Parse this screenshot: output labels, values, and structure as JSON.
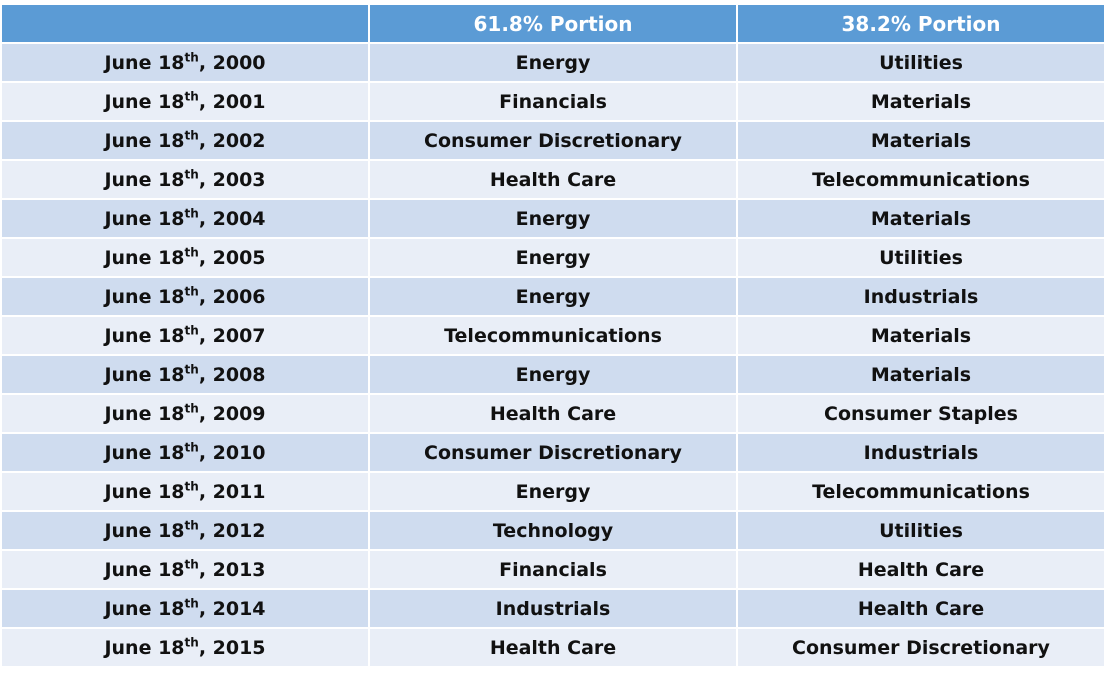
{
  "colors": {
    "header_bg": "#5b9bd5",
    "row_dark": "#cfdcef",
    "row_light": "#e9eef7",
    "text": "#111111",
    "header_text": "#ffffff"
  },
  "table": {
    "headers": [
      "",
      "61.8% Portion",
      "38.2% Portion"
    ],
    "rows": [
      {
        "date": "June 18",
        "suffix": "th",
        "year": ", 2000",
        "portion_618": "Energy",
        "portion_382": "Utilities"
      },
      {
        "date": "June 18",
        "suffix": "th",
        "year": ", 2001",
        "portion_618": "Financials",
        "portion_382": "Materials"
      },
      {
        "date": "June 18",
        "suffix": "th",
        "year": ", 2002",
        "portion_618": "Consumer Discretionary",
        "portion_382": "Materials"
      },
      {
        "date": "June 18",
        "suffix": "th",
        "year": ", 2003",
        "portion_618": "Health Care",
        "portion_382": "Telecommunications"
      },
      {
        "date": "June 18",
        "suffix": "th",
        "year": ", 2004",
        "portion_618": "Energy",
        "portion_382": "Materials"
      },
      {
        "date": "June 18",
        "suffix": "th",
        "year": ", 2005",
        "portion_618": "Energy",
        "portion_382": "Utilities"
      },
      {
        "date": "June 18",
        "suffix": "th",
        "year": ", 2006",
        "portion_618": "Energy",
        "portion_382": "Industrials"
      },
      {
        "date": "June 18",
        "suffix": "th",
        "year": ", 2007",
        "portion_618": "Telecommunications",
        "portion_382": "Materials"
      },
      {
        "date": "June 18",
        "suffix": "th",
        "year": ", 2008",
        "portion_618": "Energy",
        "portion_382": "Materials"
      },
      {
        "date": "June 18",
        "suffix": "th",
        "year": ", 2009",
        "portion_618": "Health Care",
        "portion_382": "Consumer Staples"
      },
      {
        "date": "June 18",
        "suffix": "th",
        "year": ", 2010",
        "portion_618": "Consumer Discretionary",
        "portion_382": "Industrials"
      },
      {
        "date": "June 18",
        "suffix": "th",
        "year": ", 2011",
        "portion_618": "Energy",
        "portion_382": "Telecommunications"
      },
      {
        "date": "June 18",
        "suffix": "th",
        "year": ", 2012",
        "portion_618": "Technology",
        "portion_382": "Utilities"
      },
      {
        "date": "June 18",
        "suffix": "th",
        "year": ", 2013",
        "portion_618": "Financials",
        "portion_382": "Health Care"
      },
      {
        "date": "June 18",
        "suffix": "th",
        "year": ", 2014",
        "portion_618": "Industrials",
        "portion_382": "Health Care"
      },
      {
        "date": "June 18",
        "suffix": "th",
        "year": ", 2015",
        "portion_618": "Health Care",
        "portion_382": "Consumer Discretionary"
      }
    ]
  }
}
